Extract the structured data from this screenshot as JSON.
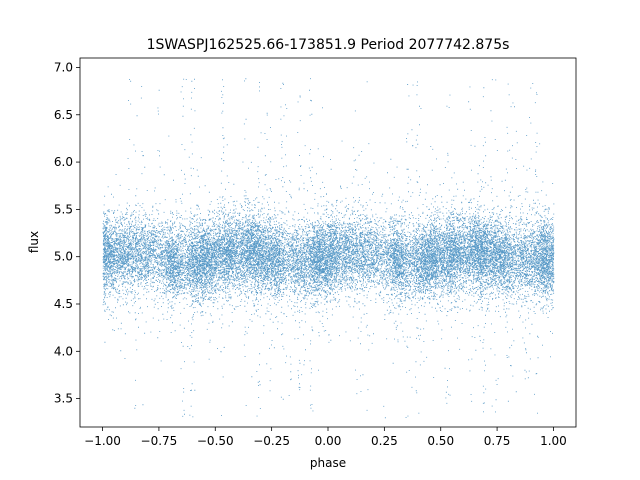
{
  "chart_data": {
    "type": "scatter",
    "title": "1SWASPJ162525.66-173851.9 Period 2077742.875s",
    "xlabel": "phase",
    "ylabel": "flux",
    "xlim": [
      -1.1,
      1.1
    ],
    "ylim": [
      3.2,
      7.1
    ],
    "xticks": [
      -1.0,
      -0.75,
      -0.5,
      -0.25,
      0.0,
      0.25,
      0.5,
      0.75,
      1.0
    ],
    "xtick_labels": [
      "−1.00",
      "−0.75",
      "−0.50",
      "−0.25",
      "0.00",
      "0.25",
      "0.50",
      "0.75",
      "1.00"
    ],
    "yticks": [
      3.5,
      4.0,
      4.5,
      5.0,
      5.5,
      6.0,
      6.5,
      7.0
    ],
    "ytick_labels": [
      "3.5",
      "4.0",
      "4.5",
      "5.0",
      "5.5",
      "6.0",
      "6.5",
      "7.0"
    ],
    "grid": false,
    "point_color": "#1f77b4",
    "series": [
      {
        "x_range": [
          -1.0,
          1.0
        ],
        "y_center": 5.0,
        "y_core_range": [
          4.5,
          5.6
        ],
        "y_outlier_range": [
          3.3,
          6.9
        ],
        "approx_points": 24000
      }
    ]
  }
}
